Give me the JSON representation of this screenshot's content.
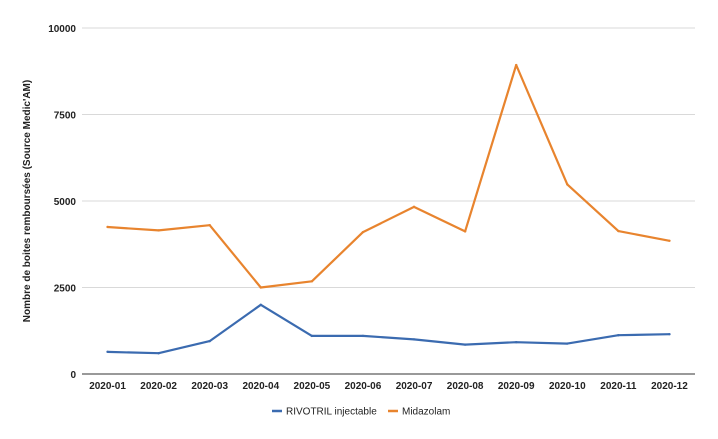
{
  "chart_data": {
    "type": "line",
    "title": "",
    "xlabel": "",
    "ylabel": "Nombre de boites remboursées (Source Medic'AM)",
    "ylim": [
      0,
      10000
    ],
    "yticks": [
      0,
      2500,
      5000,
      7500,
      10000
    ],
    "grid": true,
    "legend_position": "bottom",
    "categories": [
      "2020-01",
      "2020-02",
      "2020-03",
      "2020-04",
      "2020-05",
      "2020-06",
      "2020-07",
      "2020-08",
      "2020-09",
      "2020-10",
      "2020-11",
      "2020-12"
    ],
    "series": [
      {
        "name": "RIVOTRIL injectable",
        "color": "#3b6bb0",
        "values": [
          640,
          600,
          950,
          2000,
          1100,
          1100,
          1000,
          850,
          920,
          880,
          1120,
          1150
        ]
      },
      {
        "name": "Midazolam",
        "color": "#e8842e",
        "values": [
          4250,
          4150,
          4300,
          2500,
          2680,
          4100,
          4830,
          4120,
          8930,
          5480,
          4130,
          3850
        ]
      }
    ]
  }
}
